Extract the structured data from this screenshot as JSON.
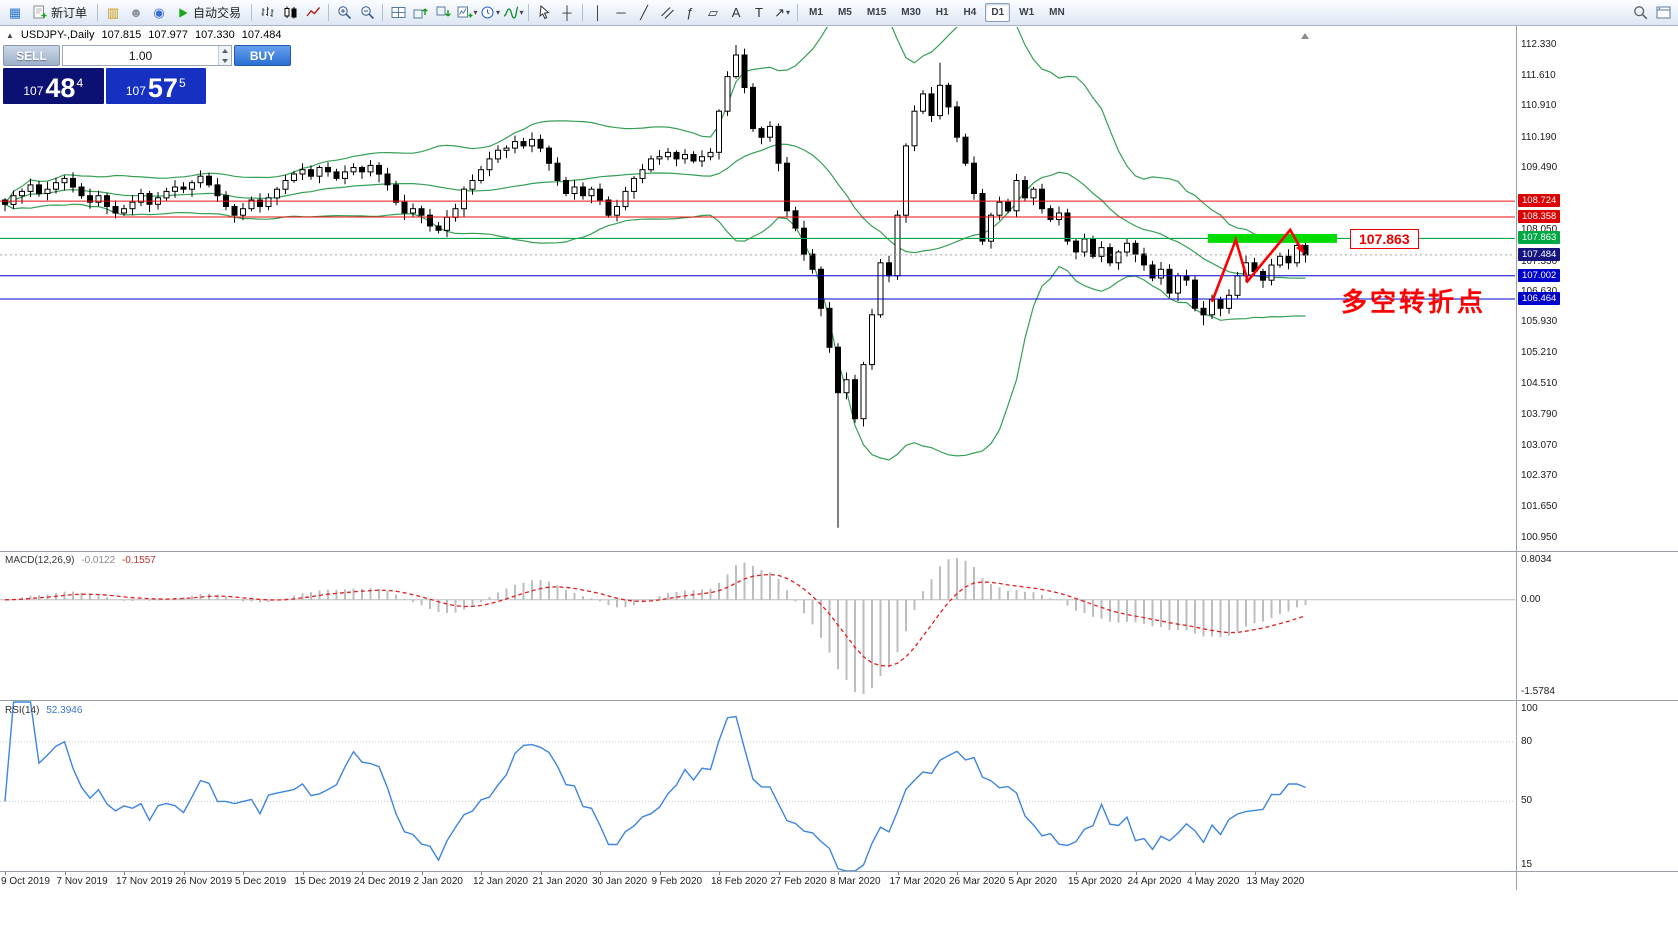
{
  "toolbar": {
    "caret_glyph": "▾",
    "items": [
      {
        "type": "icon",
        "name": "app-icon",
        "glyph": "▦",
        "color": "#2e74c8"
      },
      {
        "type": "button",
        "name": "new-order-button",
        "icon": "neworder",
        "label": "新订单"
      },
      {
        "type": "sep"
      },
      {
        "type": "icon",
        "name": "market-watch-icon",
        "glyph": "▥",
        "color": "#c89a10"
      },
      {
        "type": "icon",
        "name": "accounts-icon",
        "glyph": "☻",
        "color": "#8a929c"
      },
      {
        "type": "icon",
        "name": "support-icon",
        "glyph": "◉",
        "color": "#3a6fd0"
      },
      {
        "type": "button",
        "name": "auto-trading-button",
        "icon": "play",
        "label": "自动交易"
      },
      {
        "type": "sep"
      },
      {
        "type": "svgicon",
        "name": "bar-chart-type-button",
        "icon": "bars"
      },
      {
        "type": "svgicon",
        "name": "candlestick-type-button",
        "icon": "candles"
      },
      {
        "type": "svgicon",
        "name": "line-chart-type-button",
        "icon": "line"
      },
      {
        "type": "sep"
      },
      {
        "type": "svgicon",
        "name": "zoom-in-button",
        "icon": "zoomin"
      },
      {
        "type": "svgicon",
        "name": "zoom-out-button",
        "icon": "zoomout"
      },
      {
        "type": "sep"
      },
      {
        "type": "svgicon",
        "name": "tile-windows-button",
        "icon": "grid"
      },
      {
        "type": "svgicon",
        "name": "arrange-up-button",
        "icon": "arrangeup"
      },
      {
        "type": "svgicon",
        "name": "arrange-down-button",
        "icon": "arrangedown"
      },
      {
        "type": "svgicon",
        "name": "new-chart-button",
        "icon": "newchart",
        "caret": true
      },
      {
        "type": "svgicon",
        "name": "period-dropdown-button",
        "icon": "clock",
        "caret": true
      },
      {
        "type": "svgicon",
        "name": "indicators-button",
        "icon": "indicator",
        "caret": true
      },
      {
        "type": "sep"
      },
      {
        "type": "svgicon",
        "name": "cursor-button",
        "icon": "cursor"
      },
      {
        "type": "icon",
        "name": "crosshair-button",
        "glyph": "┼",
        "color": "#333333"
      },
      {
        "type": "sep"
      },
      {
        "type": "icon",
        "name": "vertical-line-button",
        "glyph": "│",
        "color": "#333333"
      },
      {
        "type": "icon",
        "name": "horizontal-line-button",
        "glyph": "─",
        "color": "#333333"
      },
      {
        "type": "icon",
        "name": "trendline-button",
        "glyph": "╱",
        "color": "#333333"
      },
      {
        "type": "svgicon",
        "name": "channel-button",
        "icon": "channel"
      },
      {
        "type": "icon",
        "name": "fibonacci-button",
        "glyph": "ƒ",
        "color": "#333333"
      },
      {
        "type": "icon",
        "name": "gann-button",
        "glyph": "▱",
        "color": "#333333"
      },
      {
        "type": "icon",
        "name": "text-button",
        "glyph": "A",
        "color": "#333333"
      },
      {
        "type": "icon",
        "name": "text-label-button",
        "glyph": "T",
        "color": "#333333"
      },
      {
        "type": "icon",
        "name": "arrows-button",
        "glyph": "↗",
        "color": "#333333",
        "caret": true
      },
      {
        "type": "sep"
      },
      {
        "type": "tf"
      },
      {
        "type": "spacer"
      },
      {
        "type": "svgicon",
        "name": "search-icon",
        "icon": "search"
      },
      {
        "type": "svgicon",
        "name": "community-icon",
        "icon": "panel"
      }
    ],
    "timeframes": [
      {
        "label": "M1"
      },
      {
        "label": "M5"
      },
      {
        "label": "M15"
      },
      {
        "label": "M30"
      },
      {
        "label": "H1"
      },
      {
        "label": "H4"
      },
      {
        "label": "D1",
        "active": true
      },
      {
        "label": "W1"
      },
      {
        "label": "MN"
      }
    ]
  },
  "symbol_header": {
    "marker": "▲",
    "title": "USDJPY-,Daily",
    "open": "107.815",
    "high": "107.977",
    "low": "107.330",
    "close": "107.484"
  },
  "trade_panel": {
    "sell_label": "SELL",
    "buy_label": "BUY",
    "volume": "1.00",
    "sell_price_main": "107",
    "sell_price_big": "48",
    "sell_price_sup": "4",
    "buy_price_main": "107",
    "buy_price_big": "57",
    "buy_price_sup": "5"
  },
  "annotations": {
    "turning_point_text": "多空转折点",
    "price_box_label": "107.863"
  },
  "chart_data": {
    "type": "candlestick",
    "symbol": "USDJPY-",
    "timeframe": "Daily",
    "bars_per_label": 7,
    "x_labels": [
      "9 Oct 2019",
      "7 Nov 2019",
      "17 Nov 2019",
      "26 Nov 2019",
      "5 Dec 2019",
      "15 Dec 2019",
      "24 Dec 2019",
      "2 Jan 2020",
      "12 Jan 2020",
      "21 Jan 2020",
      "30 Jan 2020",
      "9 Feb 2020",
      "18 Feb 2020",
      "27 Feb 2020",
      "8 Mar 2020",
      "17 Mar 2020",
      "26 Mar 2020",
      "5 Apr 2020",
      "15 Apr 2020",
      "24 Apr 2020",
      "4 May 2020",
      "13 May 2020"
    ],
    "price_axis_ticks": [
      "112.330",
      "111.610",
      "110.910",
      "110.190",
      "109.490",
      "108.770",
      "108.050",
      "107.330",
      "106.630",
      "105.930",
      "105.210",
      "104.510",
      "103.790",
      "103.070",
      "102.370",
      "101.650",
      "100.950"
    ],
    "closes": [
      108.65,
      108.85,
      108.95,
      109.1,
      108.9,
      109.0,
      109.15,
      109.25,
      109.05,
      108.85,
      108.7,
      108.85,
      108.6,
      108.45,
      108.55,
      108.7,
      108.9,
      108.65,
      108.8,
      108.95,
      109.05,
      109.0,
      109.15,
      109.3,
      109.1,
      108.85,
      108.6,
      108.4,
      108.55,
      108.75,
      108.6,
      108.8,
      109.0,
      109.2,
      109.35,
      109.45,
      109.3,
      109.5,
      109.4,
      109.25,
      109.4,
      109.5,
      109.4,
      109.55,
      109.35,
      109.1,
      108.7,
      108.45,
      108.55,
      108.4,
      108.15,
      108.05,
      108.35,
      108.55,
      109.0,
      109.2,
      109.45,
      109.7,
      109.9,
      109.95,
      110.1,
      110.0,
      110.15,
      109.95,
      109.6,
      109.2,
      108.9,
      109.05,
      108.85,
      109.0,
      108.75,
      108.4,
      108.6,
      108.95,
      109.25,
      109.45,
      109.7,
      109.75,
      109.85,
      109.7,
      109.8,
      109.65,
      109.75,
      109.85,
      110.8,
      111.6,
      112.1,
      111.35,
      110.4,
      110.2,
      110.45,
      109.6,
      108.5,
      108.1,
      107.5,
      107.15,
      106.25,
      105.35,
      104.3,
      104.6,
      103.7,
      104.95,
      106.1,
      107.3,
      107.0,
      108.4,
      110.0,
      110.8,
      111.2,
      110.7,
      111.4,
      110.9,
      110.2,
      109.6,
      108.9,
      107.8,
      108.4,
      108.7,
      108.5,
      109.2,
      108.8,
      109.0,
      108.55,
      108.3,
      108.45,
      107.8,
      107.55,
      107.85,
      107.45,
      107.65,
      107.3,
      107.55,
      107.75,
      107.5,
      107.25,
      106.95,
      107.15,
      106.6,
      107.0,
      106.9,
      106.25,
      106.1,
      106.45,
      106.25,
      106.55,
      107.0,
      107.3,
      107.1,
      106.9,
      107.25,
      107.45,
      107.3,
      107.7,
      107.48
    ],
    "wick_overrides": {
      "86": {
        "high": 112.33
      },
      "98": {
        "low": 101.18
      },
      "110": {
        "high": 111.92
      },
      "141": {
        "low": 105.86
      },
      "152": {
        "high": 107.9
      },
      "153": {
        "high": 107.93
      }
    },
    "levels": {
      "red_lines": [
        {
          "price": 108.724,
          "label": "108.724"
        },
        {
          "price": 108.358,
          "label": "108.358"
        }
      ],
      "green_line": {
        "price": 107.863,
        "label": "107.863"
      },
      "blue_lines": [
        {
          "price": 107.002,
          "label": "107.002"
        },
        {
          "price": 106.464,
          "label": "106.464"
        }
      ],
      "current": {
        "price": 107.484,
        "label": "107.484"
      }
    },
    "highlight_rect": {
      "from_bar": 141.5,
      "to_bar": 156.7,
      "price": 107.863
    },
    "zigzag": [
      {
        "b": 142.0,
        "p": 106.4
      },
      {
        "b": 144.8,
        "p": 107.83
      },
      {
        "b": 146.2,
        "p": 106.88
      },
      {
        "b": 151.2,
        "p": 108.06
      },
      {
        "b": 152.7,
        "p": 107.55
      }
    ],
    "indicators": {
      "bollinger": {
        "period": 20,
        "deviation": 2
      },
      "macd": {
        "name": "MACD(12,26,9)",
        "value_main": "-0.0122",
        "value_signal": "-0.1557",
        "fast": 12,
        "slow": 26,
        "signal": 9,
        "axis_max": "0.8034",
        "axis_zero": "0.00",
        "axis_min": "-1.5784"
      },
      "rsi": {
        "name": "RSI(14)",
        "value": "52.3946",
        "period": 14,
        "scale_max": 100,
        "scale_min": 15,
        "levels": [
          80,
          50
        ],
        "axis_labels": [
          "100",
          "80",
          "50",
          "15"
        ]
      }
    },
    "colors": {
      "bull": "#ffffff",
      "bear": "#000000",
      "candle_line": "#000000",
      "bands": "#35a054",
      "macd_hist": "#bdbdbd",
      "macd_signal": "#e02020",
      "rsi_line": "#3d85e0",
      "level_red": "#e81010",
      "level_green": "#00a844",
      "level_blue": "#0000cc",
      "tag_red": "#dd0000",
      "tag_green": "#00a844",
      "tag_blue": "#0000cc",
      "tag_current": "#15157d",
      "highlight_green": "#00dc00",
      "zigzag": "#ff0000"
    }
  }
}
